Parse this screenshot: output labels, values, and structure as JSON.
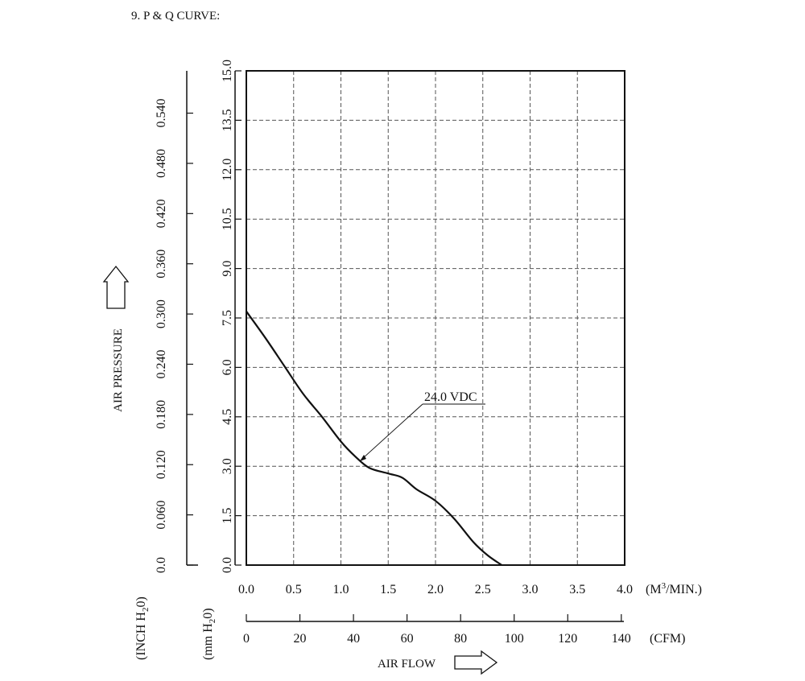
{
  "heading": "9. P & Q CURVE:",
  "chart_data": {
    "type": "line",
    "title": "9. P & Q CURVE:",
    "xlabel": "AIR FLOW",
    "ylabel": "AIR PRESSURE",
    "x_unit": "(M3/MIN.)",
    "x_unit_parts": {
      "pre": "(M",
      "sup": "3",
      "post": "/MIN.)"
    },
    "x2_unit": "(CFM)",
    "y_unit_mm": {
      "pre": "(mm H",
      "sub": "2",
      "post": "0)"
    },
    "y_unit_inch": {
      "pre": "(INCH H",
      "sub": "2",
      "post": "0)"
    },
    "xlim": [
      0,
      4.0
    ],
    "ylim": [
      0,
      15.0
    ],
    "x_ticks": [
      "0.0",
      "0.5",
      "1.0",
      "1.5",
      "2.0",
      "2.5",
      "3.0",
      "3.5",
      "4.0"
    ],
    "x_tick_values": [
      0,
      0.5,
      1.0,
      1.5,
      2.0,
      2.5,
      3.0,
      3.5,
      4.0
    ],
    "y_ticks": [
      "0.0",
      "1.5",
      "3.0",
      "4.5",
      "6.0",
      "7.5",
      "9.0",
      "10.5",
      "12.0",
      "13.5",
      "15.0"
    ],
    "y_tick_values": [
      0,
      1.5,
      3.0,
      4.5,
      6.0,
      7.5,
      9.0,
      10.5,
      12.0,
      13.5,
      15.0
    ],
    "cfm_ticks": [
      "0",
      "20",
      "40",
      "60",
      "80",
      "100",
      "120",
      "140"
    ],
    "cfm_tick_values": [
      0,
      20,
      40,
      60,
      80,
      100,
      120,
      140
    ],
    "inch_ticks": [
      "0.0",
      "0.060",
      "0.120",
      "0.180",
      "0.240",
      "0.300",
      "0.360",
      "0.420",
      "0.480",
      "0.540"
    ],
    "inch_tick_values": [
      0,
      0.06,
      0.12,
      0.18,
      0.24,
      0.3,
      0.36,
      0.42,
      0.48,
      0.54
    ],
    "grid": true,
    "series": [
      {
        "name": "24.0 VDC",
        "x": [
          0.0,
          0.2,
          0.4,
          0.6,
          0.8,
          1.0,
          1.15,
          1.3,
          1.5,
          1.65,
          1.8,
          2.0,
          2.2,
          2.4,
          2.55,
          2.7
        ],
        "y": [
          7.7,
          6.9,
          6.05,
          5.2,
          4.5,
          3.75,
          3.3,
          2.95,
          2.78,
          2.65,
          2.3,
          1.95,
          1.4,
          0.7,
          0.3,
          0.0
        ]
      }
    ],
    "annotation": {
      "text": "24.0 VDC",
      "x": 1.2,
      "y": 3.15
    }
  }
}
